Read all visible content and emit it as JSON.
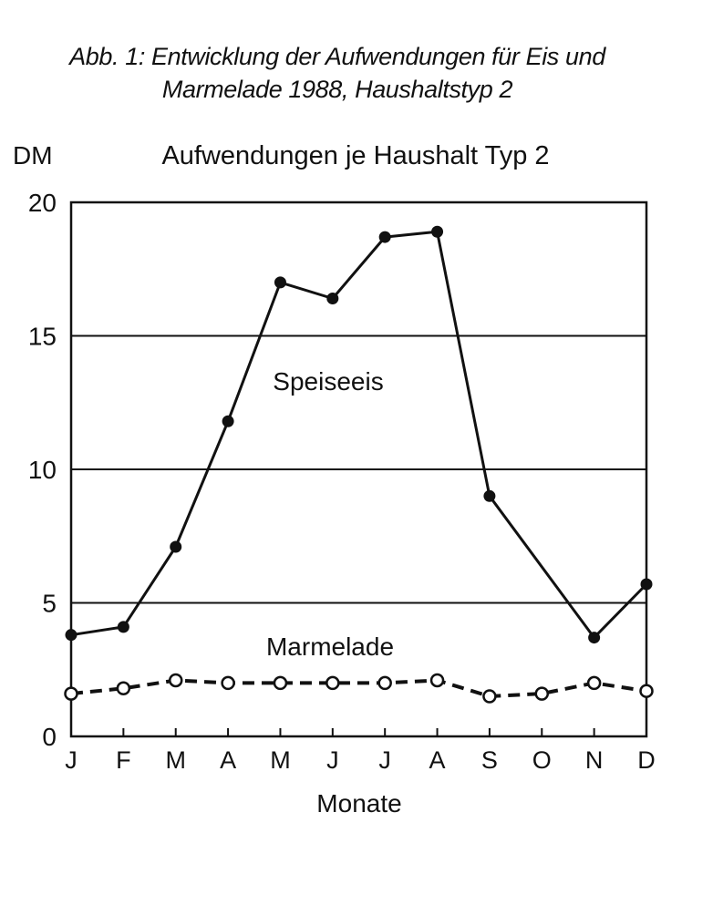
{
  "caption": {
    "line1": "Abb. 1: Entwicklung der Aufwendungen für Eis und",
    "line2": "Marmelade 1988, Haushaltstyp 2"
  },
  "chart_data": {
    "type": "line",
    "title": "Aufwendungen je Haushalt Typ 2",
    "ylabel": "DM",
    "xlabel": "Monate",
    "categories": [
      "J",
      "F",
      "M",
      "A",
      "M",
      "J",
      "J",
      "A",
      "S",
      "O",
      "N",
      "D"
    ],
    "yticks": [
      0,
      5,
      10,
      15,
      20
    ],
    "ylim": [
      0,
      20
    ],
    "grid": "horizontal",
    "series": [
      {
        "name": "Speiseeis",
        "style": "solid",
        "marker": "filled-circle",
        "values": [
          3.8,
          4.1,
          7.1,
          11.8,
          17.0,
          16.4,
          18.7,
          18.9,
          9.0,
          null,
          3.7,
          5.7
        ]
      },
      {
        "name": "Marmelade",
        "style": "dashed",
        "marker": "open-circle",
        "values": [
          1.6,
          1.8,
          2.1,
          2.0,
          2.0,
          2.0,
          2.0,
          2.1,
          1.5,
          1.6,
          2.0,
          1.7
        ]
      }
    ],
    "colors": {
      "line": "#111111",
      "grid": "#111111",
      "background": "#ffffff"
    }
  }
}
